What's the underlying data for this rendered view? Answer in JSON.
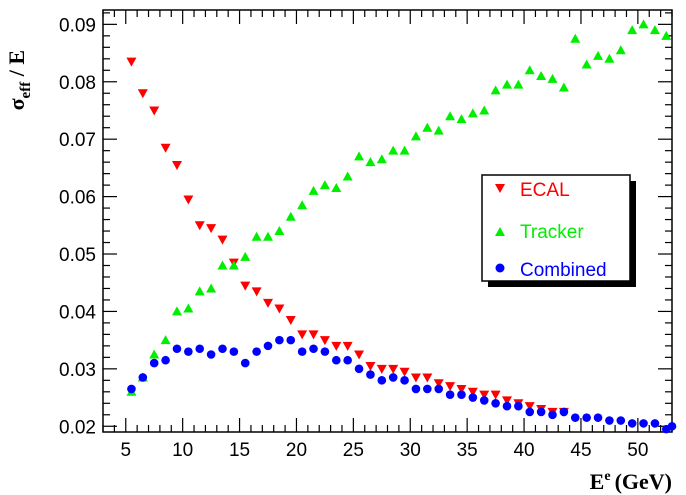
{
  "chart_data": {
    "type": "scatter",
    "xlabel": {
      "main": "E",
      "sup": "e",
      "unit": "(GeV)"
    },
    "ylabel": {
      "main": "σ",
      "sub": "eff",
      "rest": " / E"
    },
    "xlim": [
      3,
      53
    ],
    "ylim": [
      0.019,
      0.0925
    ],
    "xticks": [
      5,
      10,
      15,
      20,
      25,
      30,
      35,
      40,
      45,
      50
    ],
    "yticks": [
      0.02,
      0.03,
      0.04,
      0.05,
      0.06,
      0.07,
      0.08,
      0.09
    ],
    "ytick_labels": [
      "0.02",
      "0.03",
      "0.04",
      "0.05",
      "0.06",
      "0.07",
      "0.08",
      "0.09"
    ],
    "grid": false,
    "legend_position": "right-middle",
    "series": [
      {
        "name": "ECAL",
        "marker": "triangle-down",
        "color": "#ff0000",
        "points": [
          [
            5.5,
            0.0835
          ],
          [
            6.5,
            0.078
          ],
          [
            7.5,
            0.075
          ],
          [
            8.5,
            0.0685
          ],
          [
            9.5,
            0.0655
          ],
          [
            10.5,
            0.0595
          ],
          [
            11.5,
            0.055
          ],
          [
            12.5,
            0.0545
          ],
          [
            13.5,
            0.0525
          ],
          [
            14.5,
            0.0485
          ],
          [
            15.5,
            0.0445
          ],
          [
            16.5,
            0.0435
          ],
          [
            17.5,
            0.0415
          ],
          [
            18.5,
            0.0405
          ],
          [
            19.5,
            0.0385
          ],
          [
            20.5,
            0.036
          ],
          [
            21.5,
            0.036
          ],
          [
            22.5,
            0.035
          ],
          [
            23.5,
            0.034
          ],
          [
            24.5,
            0.034
          ],
          [
            25.5,
            0.0325
          ],
          [
            26.5,
            0.0305
          ],
          [
            27.5,
            0.03
          ],
          [
            28.5,
            0.03
          ],
          [
            29.5,
            0.0295
          ],
          [
            30.5,
            0.0285
          ],
          [
            31.5,
            0.0285
          ],
          [
            32.5,
            0.0275
          ],
          [
            33.5,
            0.027
          ],
          [
            34.5,
            0.0265
          ],
          [
            35.5,
            0.026
          ],
          [
            36.5,
            0.0255
          ],
          [
            37.5,
            0.0255
          ],
          [
            38.5,
            0.0245
          ],
          [
            39.5,
            0.024
          ],
          [
            40.5,
            0.0235
          ],
          [
            41.5,
            0.023
          ],
          [
            42.5,
            0.0225
          ],
          [
            43.5,
            0.0225
          ]
        ]
      },
      {
        "name": "Tracker",
        "marker": "triangle-up",
        "color": "#00ee00",
        "points": [
          [
            5.5,
            0.026
          ],
          [
            6.5,
            0.0285
          ],
          [
            7.5,
            0.0325
          ],
          [
            8.5,
            0.035
          ],
          [
            9.5,
            0.04
          ],
          [
            10.5,
            0.0405
          ],
          [
            11.5,
            0.0435
          ],
          [
            12.5,
            0.044
          ],
          [
            13.5,
            0.048
          ],
          [
            14.5,
            0.048
          ],
          [
            15.5,
            0.0495
          ],
          [
            16.5,
            0.053
          ],
          [
            17.5,
            0.053
          ],
          [
            18.5,
            0.054
          ],
          [
            19.5,
            0.0565
          ],
          [
            20.5,
            0.0585
          ],
          [
            21.5,
            0.061
          ],
          [
            22.5,
            0.062
          ],
          [
            23.5,
            0.0615
          ],
          [
            24.5,
            0.0635
          ],
          [
            25.5,
            0.067
          ],
          [
            26.5,
            0.066
          ],
          [
            27.5,
            0.0665
          ],
          [
            28.5,
            0.068
          ],
          [
            29.5,
            0.068
          ],
          [
            30.5,
            0.0705
          ],
          [
            31.5,
            0.072
          ],
          [
            32.5,
            0.0715
          ],
          [
            33.5,
            0.074
          ],
          [
            34.5,
            0.0735
          ],
          [
            35.5,
            0.0745
          ],
          [
            36.5,
            0.075
          ],
          [
            37.5,
            0.0785
          ],
          [
            38.5,
            0.0795
          ],
          [
            39.5,
            0.0795
          ],
          [
            40.5,
            0.082
          ],
          [
            41.5,
            0.081
          ],
          [
            42.5,
            0.0805
          ],
          [
            43.5,
            0.079
          ],
          [
            44.5,
            0.0875
          ],
          [
            45.5,
            0.083
          ],
          [
            46.5,
            0.0845
          ],
          [
            47.5,
            0.084
          ],
          [
            48.5,
            0.0855
          ],
          [
            49.5,
            0.089
          ],
          [
            50.5,
            0.09
          ],
          [
            51.5,
            0.089
          ],
          [
            52.5,
            0.088
          ]
        ]
      },
      {
        "name": "Combined",
        "marker": "circle",
        "color": "#0000ff",
        "points": [
          [
            5.5,
            0.0265
          ],
          [
            6.5,
            0.0285
          ],
          [
            7.5,
            0.031
          ],
          [
            8.5,
            0.0315
          ],
          [
            9.5,
            0.0335
          ],
          [
            10.5,
            0.033
          ],
          [
            11.5,
            0.0335
          ],
          [
            12.5,
            0.0325
          ],
          [
            13.5,
            0.0335
          ],
          [
            14.5,
            0.033
          ],
          [
            15.5,
            0.031
          ],
          [
            16.5,
            0.033
          ],
          [
            17.5,
            0.034
          ],
          [
            18.5,
            0.035
          ],
          [
            19.5,
            0.035
          ],
          [
            20.5,
            0.033
          ],
          [
            21.5,
            0.0335
          ],
          [
            22.5,
            0.033
          ],
          [
            23.5,
            0.0315
          ],
          [
            24.5,
            0.0315
          ],
          [
            25.5,
            0.03
          ],
          [
            26.5,
            0.029
          ],
          [
            27.5,
            0.028
          ],
          [
            28.5,
            0.0285
          ],
          [
            29.5,
            0.028
          ],
          [
            30.5,
            0.0265
          ],
          [
            31.5,
            0.0265
          ],
          [
            32.5,
            0.0265
          ],
          [
            33.5,
            0.0255
          ],
          [
            34.5,
            0.0255
          ],
          [
            35.5,
            0.025
          ],
          [
            36.5,
            0.0245
          ],
          [
            37.5,
            0.024
          ],
          [
            38.5,
            0.0235
          ],
          [
            39.5,
            0.0235
          ],
          [
            40.5,
            0.0225
          ],
          [
            41.5,
            0.0225
          ],
          [
            42.5,
            0.022
          ],
          [
            43.5,
            0.0225
          ],
          [
            44.5,
            0.0215
          ],
          [
            45.5,
            0.0215
          ],
          [
            46.5,
            0.0215
          ],
          [
            47.5,
            0.021
          ],
          [
            48.5,
            0.021
          ],
          [
            49.5,
            0.0205
          ],
          [
            50.5,
            0.0205
          ],
          [
            51.5,
            0.0205
          ],
          [
            52.5,
            0.0195
          ],
          [
            53.0,
            0.02
          ]
        ]
      }
    ]
  }
}
